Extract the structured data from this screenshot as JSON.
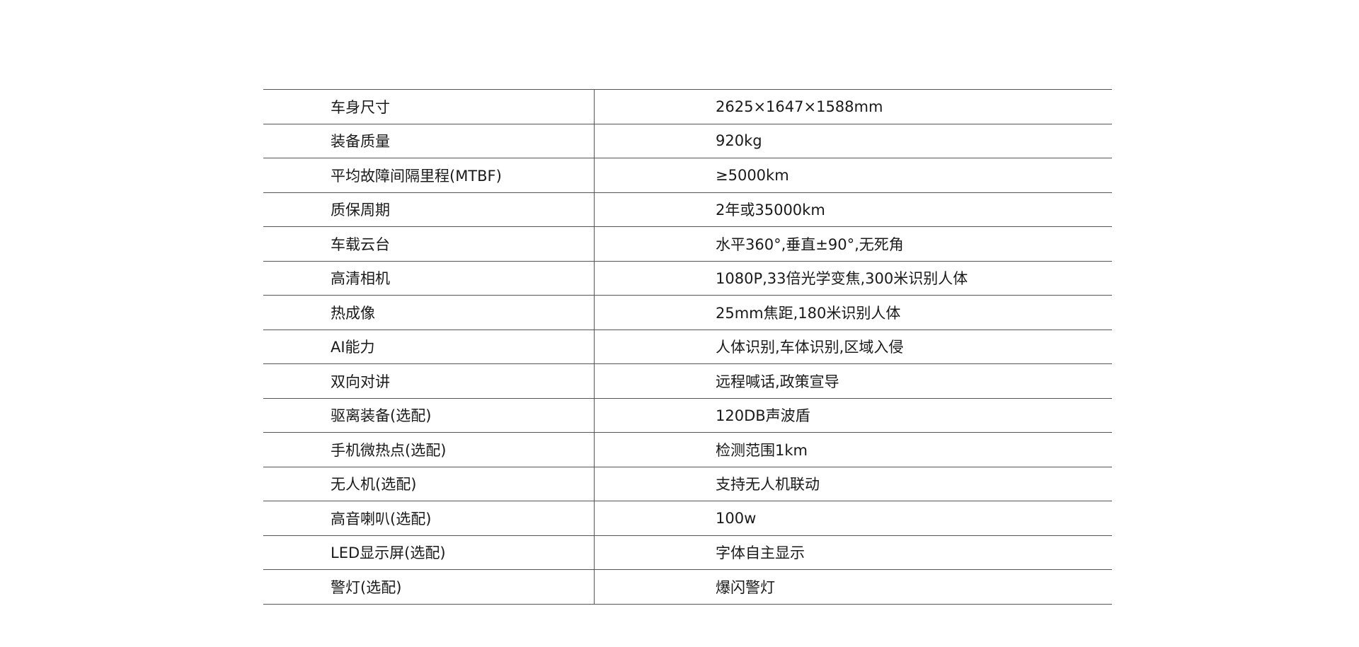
{
  "specs": [
    {
      "label": "车身尺寸",
      "value": "2625×1647×1588mm"
    },
    {
      "label": "装备质量",
      "value": "920kg"
    },
    {
      "label": "平均故障间隔里程(MTBF)",
      "value": "≥5000km"
    },
    {
      "label": "质保周期",
      "value": "2年或35000km"
    },
    {
      "label": "车载云台",
      "value": "水平360°,垂直±90°,无死角"
    },
    {
      "label": "高清相机",
      "value": "1080P,33倍光学变焦,300米识别人体"
    },
    {
      "label": "热成像",
      "value": "25mm焦距,180米识别人体"
    },
    {
      "label": "AI能力",
      "value": "人体识别,车体识别,区域入侵"
    },
    {
      "label": "双向对讲",
      "value": "远程喊话,政策宣导"
    },
    {
      "label": "驱离装备(选配)",
      "value": "120DB声波盾"
    },
    {
      "label": "手机微热点(选配)",
      "value": "检测范围1km"
    },
    {
      "label": "无人机(选配)",
      "value": "支持无人机联动"
    },
    {
      "label": "高音喇叭(选配)",
      "value": "100w"
    },
    {
      "label": "LED显示屏(选配)",
      "value": "字体自主显示"
    },
    {
      "label": "警灯(选配)",
      "value": "爆闪警灯"
    }
  ]
}
